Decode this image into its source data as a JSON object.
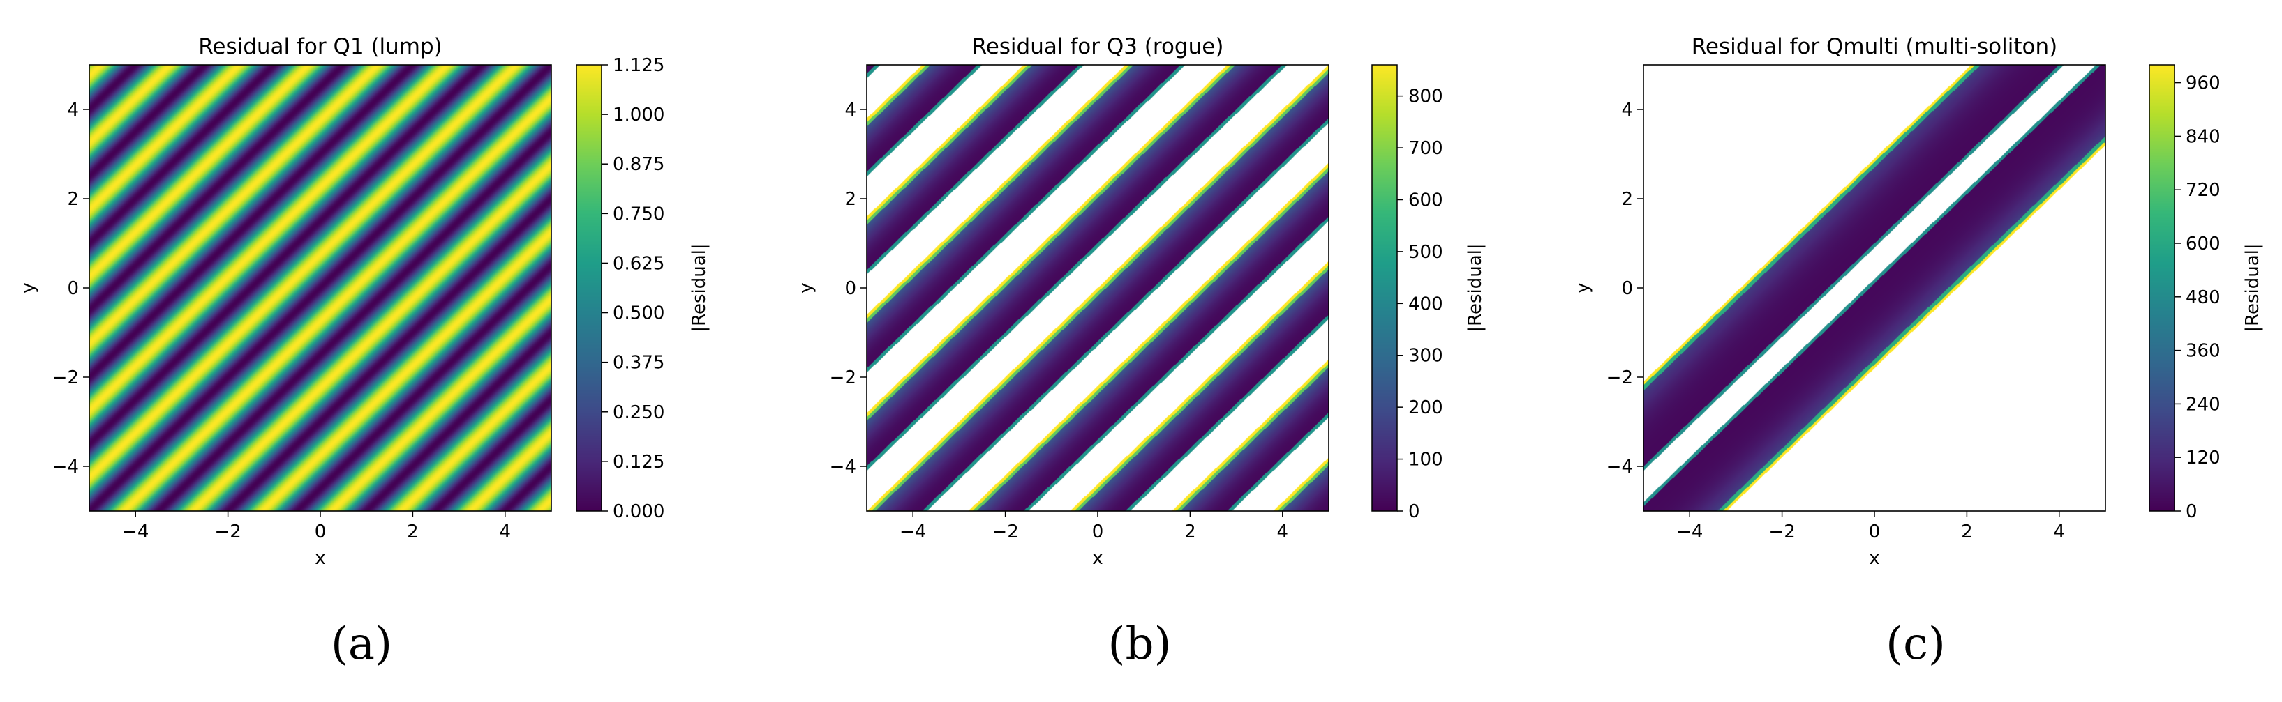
{
  "colormap_name": "viridis",
  "colormap_stops": [
    "#440154",
    "#482878",
    "#3e4a89",
    "#31688e",
    "#26828e",
    "#1f9e89",
    "#35b779",
    "#6ece58",
    "#b5de2b",
    "#fde725"
  ],
  "chart_data": [
    {
      "type": "heatmap",
      "panel_label": "(a)",
      "title": "Residual for Q1 (lump)",
      "xlabel": "x",
      "ylabel": "y",
      "colorbar_label": "|Residual|",
      "xlim": [
        -5,
        5
      ],
      "ylim": [
        -5,
        5
      ],
      "xticks": [
        -4,
        -2,
        0,
        2,
        4
      ],
      "yticks": [
        -4,
        -2,
        0,
        2,
        4
      ],
      "xtick_labels": [
        "−4",
        "−2",
        "0",
        "2",
        "4"
      ],
      "ytick_labels": [
        "−4",
        "−2",
        "0",
        "2",
        "4"
      ],
      "vmin": 0,
      "vmax": 1.125,
      "colorbar_ticks": [
        0,
        0.125,
        0.25,
        0.375,
        0.5,
        0.625,
        0.75,
        0.875,
        1.0,
        1.125
      ],
      "colorbar_tick_labels": [
        "0.000",
        "0.125",
        "0.250",
        "0.375",
        "0.500",
        "0.625",
        "0.750",
        "0.875",
        "1.000",
        "1.125"
      ],
      "field": {
        "pattern": "diagonal-stripes",
        "band_spacing": 3.0,
        "min_value": 0.0,
        "max_value": 1.125
      }
    },
    {
      "type": "heatmap",
      "panel_label": "(b)",
      "title": "Residual for Q3 (rogue)",
      "xlabel": "x",
      "ylabel": "y",
      "colorbar_label": "|Residual|",
      "xlim": [
        -5,
        5
      ],
      "ylim": [
        -5,
        5
      ],
      "xticks": [
        -4,
        -2,
        0,
        2,
        4
      ],
      "yticks": [
        -4,
        -2,
        0,
        2,
        4
      ],
      "xtick_labels": [
        "−4",
        "−2",
        "0",
        "2",
        "4"
      ],
      "ytick_labels": [
        "−4",
        "−2",
        "0",
        "2",
        "4"
      ],
      "vmin": 0,
      "vmax": 860,
      "colorbar_ticks": [
        0,
        100,
        200,
        300,
        400,
        500,
        600,
        700,
        800
      ],
      "colorbar_tick_labels": [
        "0",
        "100",
        "200",
        "300",
        "400",
        "500",
        "600",
        "700",
        "800"
      ],
      "field": {
        "pattern": "diagonal-stripes-with-gaps",
        "band_spacing": 2.2,
        "min_value": 0,
        "max_value": 860,
        "gap_color": "#ffffff"
      }
    },
    {
      "type": "heatmap",
      "panel_label": "(c)",
      "title": "Residual for Qmulti (multi-soliton)",
      "xlabel": "x",
      "ylabel": "y",
      "colorbar_label": "|Residual|",
      "xlim": [
        -5,
        5
      ],
      "ylim": [
        -5,
        5
      ],
      "xticks": [
        -4,
        -2,
        0,
        2,
        4
      ],
      "yticks": [
        -4,
        -2,
        0,
        2,
        4
      ],
      "xtick_labels": [
        "−4",
        "−2",
        "0",
        "2",
        "4"
      ],
      "ytick_labels": [
        "−4",
        "−2",
        "0",
        "2",
        "4"
      ],
      "vmin": 0,
      "vmax": 1000,
      "colorbar_ticks": [
        0,
        120,
        240,
        360,
        480,
        600,
        720,
        840,
        960
      ],
      "colorbar_tick_labels": [
        "0",
        "120",
        "240",
        "360",
        "480",
        "600",
        "720",
        "840",
        "960"
      ],
      "field": {
        "pattern": "single-diagonal-band-with-gap",
        "band_center_offset": 2.0,
        "min_value": 0,
        "max_value": 1000,
        "gap_color": "#ffffff"
      }
    }
  ]
}
